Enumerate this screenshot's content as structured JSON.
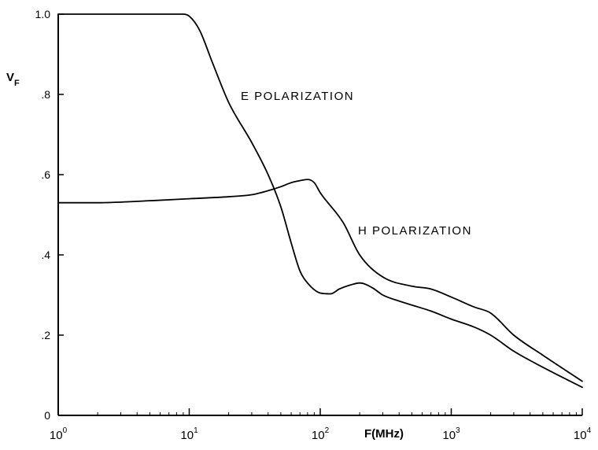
{
  "chart_data": {
    "type": "line",
    "title": "",
    "xlabel": "F(MHz)",
    "ylabel": {
      "main": "V",
      "subscript": "F"
    },
    "x_scale": "log",
    "xlim": [
      1,
      10000
    ],
    "ylim": [
      0,
      1.0
    ],
    "x_ticks": [
      {
        "value": 1,
        "base": "10",
        "exp": "0"
      },
      {
        "value": 10,
        "base": "10",
        "exp": "1"
      },
      {
        "value": 100,
        "base": "10",
        "exp": "2"
      },
      {
        "value": 1000,
        "base": "10",
        "exp": "3"
      },
      {
        "value": 10000,
        "base": "10",
        "exp": "4"
      }
    ],
    "y_ticks": [
      {
        "value": 0,
        "label": "0"
      },
      {
        "value": 0.2,
        "label": ".2"
      },
      {
        "value": 0.4,
        "label": ".4"
      },
      {
        "value": 0.6,
        "label": ".6"
      },
      {
        "value": 0.8,
        "label": ".8"
      },
      {
        "value": 1.0,
        "label": "1.0"
      }
    ],
    "grid": false,
    "legend": "none",
    "series": [
      {
        "name": "E POLARIZATION",
        "x": [
          1,
          2,
          5,
          9,
          10,
          12,
          15,
          20,
          30,
          40,
          50,
          60,
          70,
          80,
          100,
          120,
          140,
          170,
          200,
          250,
          300,
          400,
          500,
          700,
          1000,
          1500,
          2000,
          3000,
          5000,
          10000
        ],
        "y": [
          1.0,
          1.0,
          1.0,
          1.0,
          0.995,
          0.96,
          0.88,
          0.78,
          0.68,
          0.6,
          0.52,
          0.43,
          0.36,
          0.33,
          0.305,
          0.303,
          0.315,
          0.325,
          0.33,
          0.318,
          0.3,
          0.285,
          0.275,
          0.26,
          0.24,
          0.22,
          0.2,
          0.16,
          0.12,
          0.07
        ]
      },
      {
        "name": "H POLARIZATION",
        "x": [
          1,
          2,
          5,
          10,
          20,
          30,
          40,
          50,
          60,
          70,
          80,
          90,
          100,
          150,
          200,
          300,
          500,
          700,
          1000,
          1500,
          2000,
          3000,
          5000,
          10000
        ],
        "y": [
          0.53,
          0.53,
          0.535,
          0.54,
          0.545,
          0.55,
          0.56,
          0.57,
          0.58,
          0.585,
          0.588,
          0.58,
          0.555,
          0.48,
          0.4,
          0.345,
          0.322,
          0.315,
          0.295,
          0.27,
          0.255,
          0.2,
          0.15,
          0.085
        ]
      }
    ],
    "annotations": [
      {
        "text": "E POLARIZATION",
        "series": 0
      },
      {
        "text": "H POLARIZATION",
        "series": 1
      }
    ],
    "colors": {
      "line": "#000000",
      "background": "#ffffff"
    }
  }
}
